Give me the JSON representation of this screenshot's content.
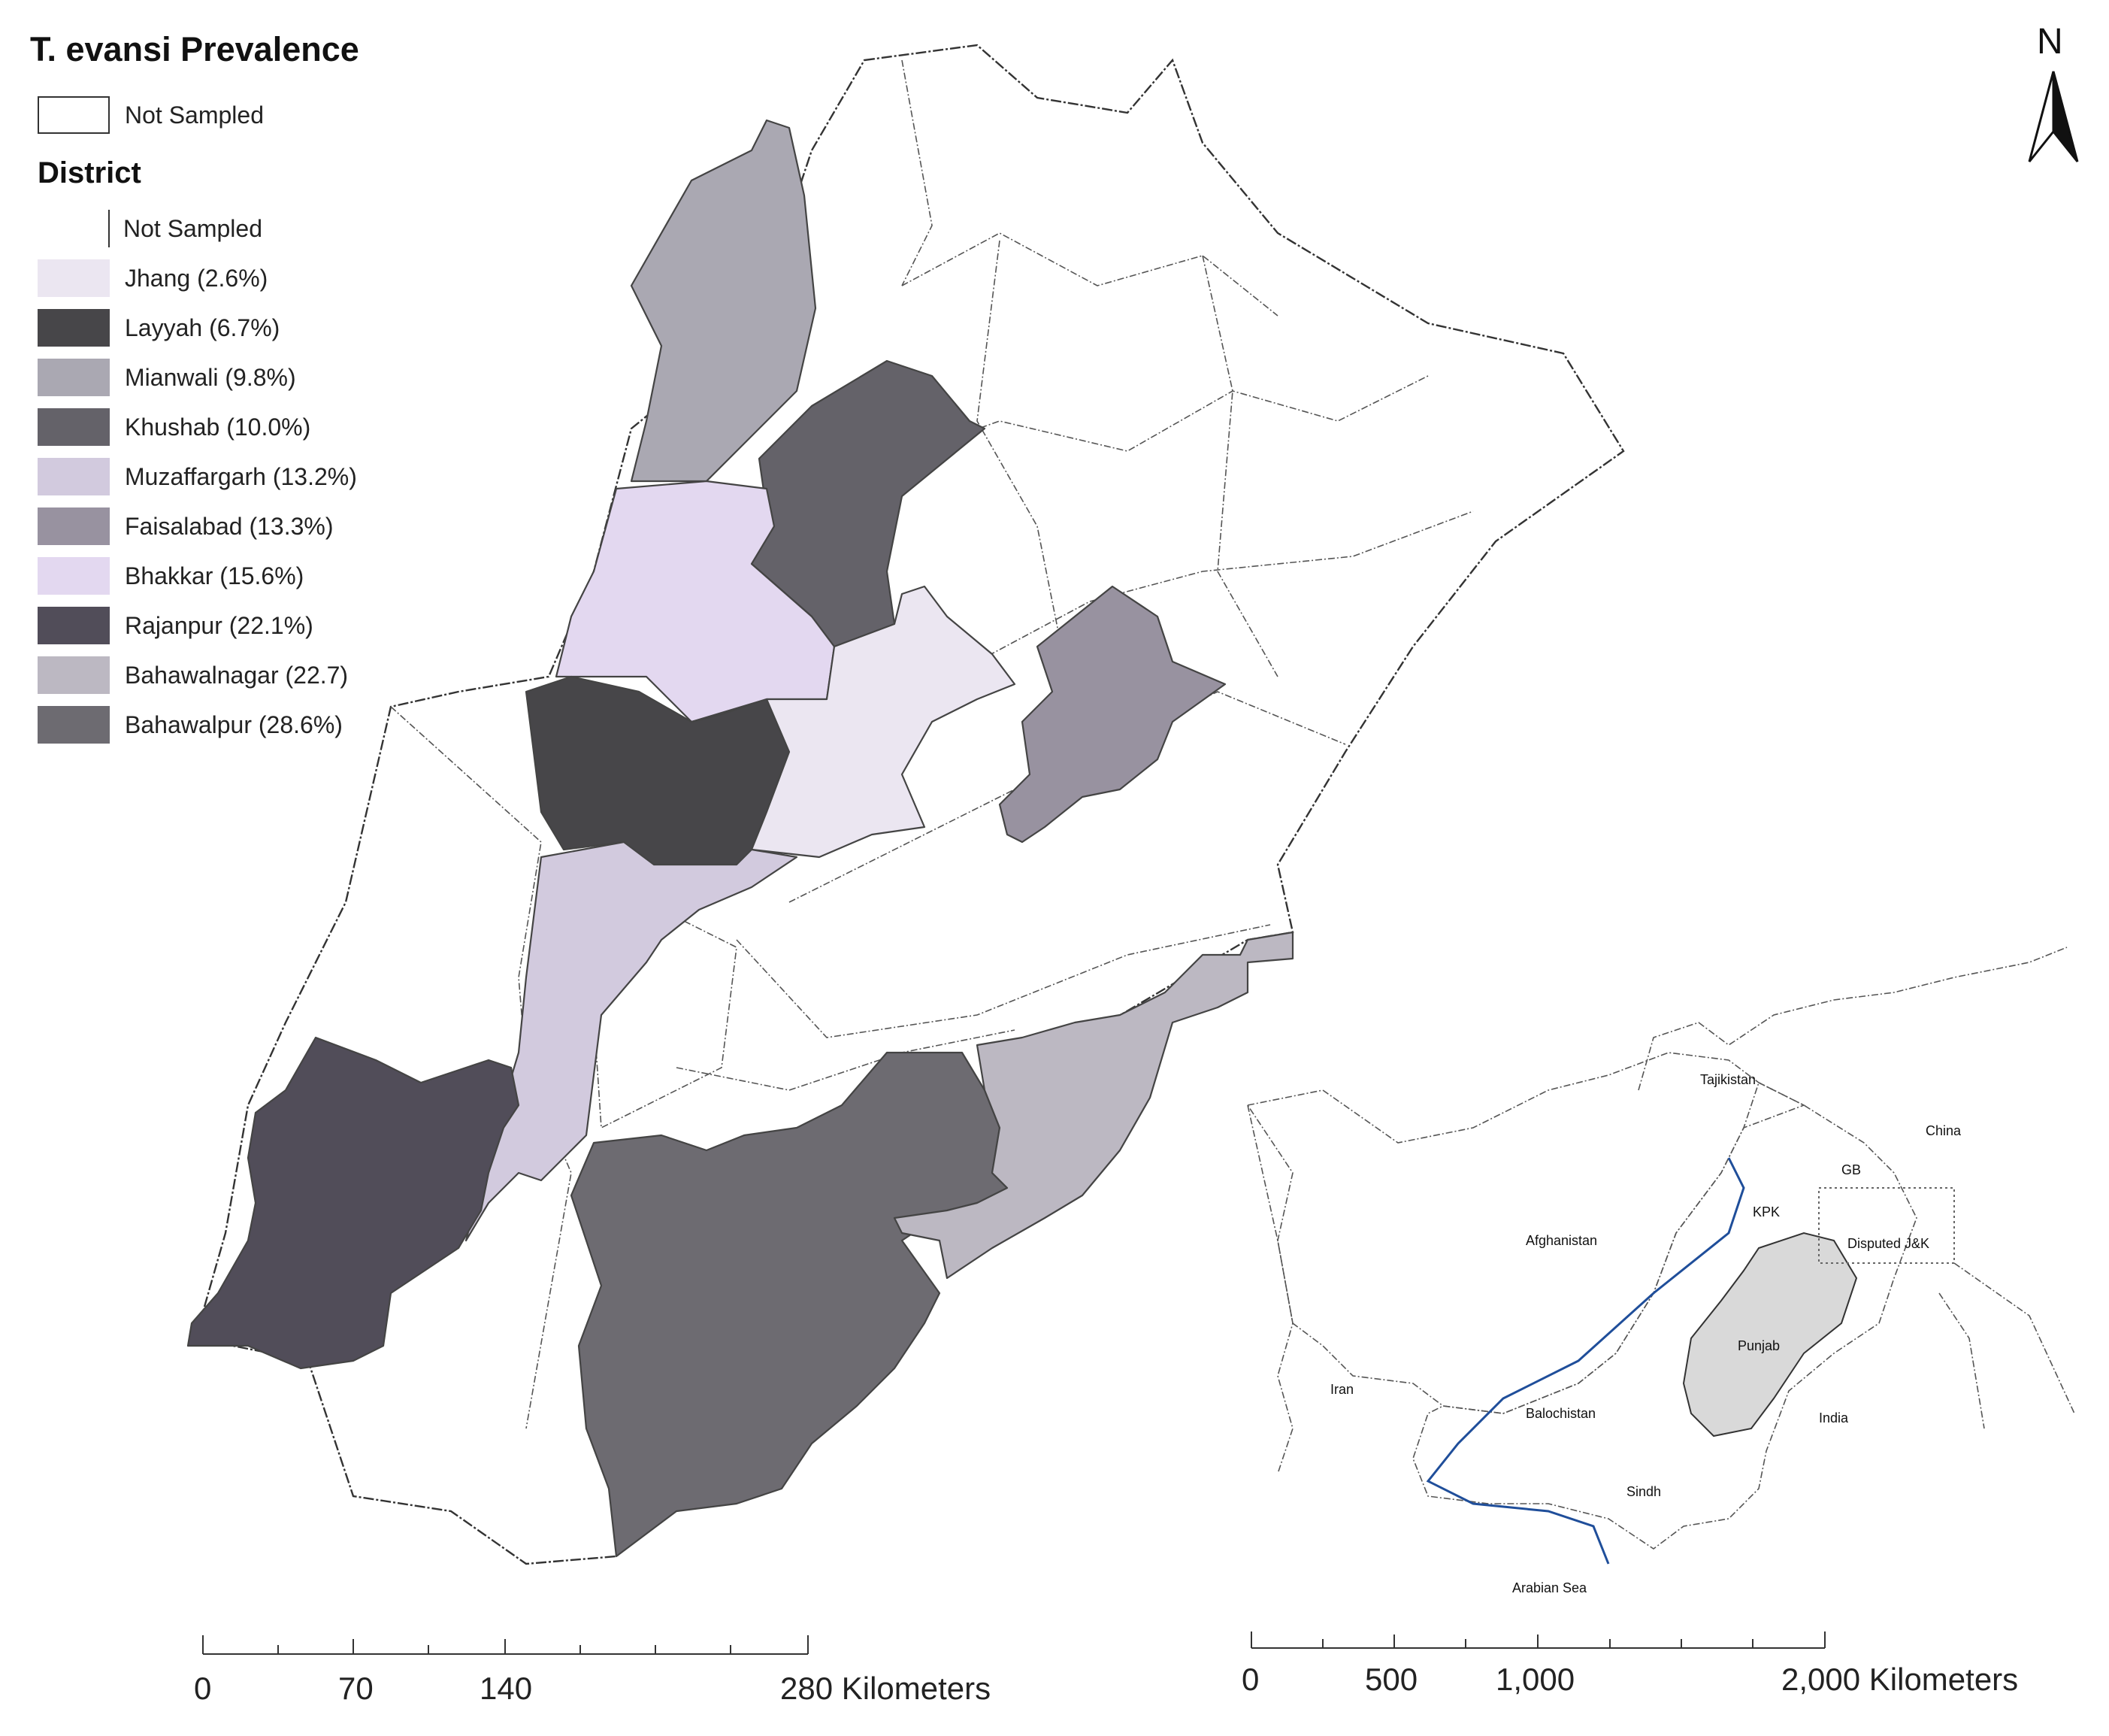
{
  "legend": {
    "title": "T. evansi Prevalence",
    "boundary_entry": {
      "label": "Not Sampled"
    },
    "district_title": "District",
    "district_entries": [
      {
        "label": "Not Sampled",
        "color": "#ffffff"
      },
      {
        "label": "Jhang (2.6%)",
        "color": "#ebe6f1"
      },
      {
        "label": "Layyah (6.7%)",
        "color": "#474649"
      },
      {
        "label": "Mianwali (9.8%)",
        "color": "#aaa8b2"
      },
      {
        "label": "Khushab (10.0%)",
        "color": "#646269"
      },
      {
        "label": "Muzaffargarh (13.2%)",
        "color": "#d2cade"
      },
      {
        "label": "Faisalabad (13.3%)",
        "color": "#9892a0"
      },
      {
        "label": "Bhakkar (15.6%)",
        "color": "#e3d8f0"
      },
      {
        "label": "Rajanpur (22.1%)",
        "color": "#514d59"
      },
      {
        "label": "Bahawalnagar (22.7)",
        "color": "#bcb8c2"
      },
      {
        "label": "Bahawalpur (28.6%)",
        "color": "#6d6b71"
      }
    ]
  },
  "north_arrow": {
    "label": "N"
  },
  "scale_main": {
    "ticks": [
      "0",
      "70",
      "140",
      "280 Kilometers"
    ]
  },
  "scale_inset": {
    "ticks": [
      "0",
      "500",
      "1,000",
      "2,000 Kilometers"
    ]
  },
  "inset": {
    "labels": {
      "tajikistan": "Tajikistan",
      "china": "China",
      "gb": "GB",
      "kpk": "KPK",
      "afghanistan": "Afghanistan",
      "disputed": "Disputed J&K",
      "punjab": "Punjab",
      "iran": "Iran",
      "balochistan": "Balochistan",
      "india": "India",
      "sindh": "Sindh",
      "arabian_sea": "Arabian Sea"
    },
    "colors": {
      "punjab": "#d9d9d9",
      "river": "#1f4e9a"
    }
  }
}
